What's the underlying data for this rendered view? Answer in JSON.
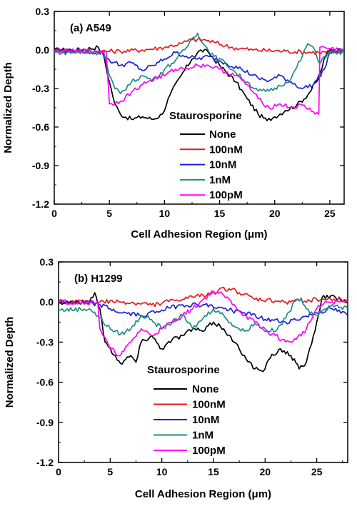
{
  "colors": {
    "None": "#000000",
    "100nM": "#e41a1c",
    "10nM": "#1f1fd6",
    "1nM": "#1e8c84",
    "100pM": "#ff00ff"
  },
  "chart_data": [
    {
      "type": "line",
      "panel_label": "(a) A549",
      "xlabel": "Cell Adhesion Region (μm)",
      "ylabel": "Normalized Depth",
      "xlim": [
        0,
        26.3
      ],
      "ylim": [
        -1.2,
        0.3
      ],
      "xticks": [
        "0",
        "5",
        "10",
        "15",
        "20",
        "25"
      ],
      "xtick_values": [
        0,
        5,
        10,
        15,
        20,
        25
      ],
      "yticks": [
        "0.3",
        "0.0",
        "-0.3",
        "-0.6",
        "-0.9",
        "-1.2"
      ],
      "ytick_values": [
        0.3,
        0.0,
        -0.3,
        -0.6,
        -0.9,
        -1.2
      ],
      "legend_title": "Staurosporine",
      "legend_position": "center",
      "series": [
        {
          "name": "None",
          "color_key": "None",
          "points": [
            [
              0,
              0.0
            ],
            [
              2.0,
              0.0
            ],
            [
              4.0,
              0.02
            ],
            [
              4.5,
              -0.05
            ],
            [
              5.0,
              -0.25
            ],
            [
              5.5,
              -0.42
            ],
            [
              6.0,
              -0.5
            ],
            [
              7.0,
              -0.54
            ],
            [
              8.0,
              -0.52
            ],
            [
              9.0,
              -0.54
            ],
            [
              9.8,
              -0.5
            ],
            [
              10.5,
              -0.35
            ],
            [
              11.5,
              -0.2
            ],
            [
              12.5,
              -0.07
            ],
            [
              13.3,
              0.0
            ],
            [
              14.0,
              -0.02
            ],
            [
              15.0,
              -0.12
            ],
            [
              16.5,
              -0.25
            ],
            [
              17.5,
              -0.38
            ],
            [
              18.5,
              -0.5
            ],
            [
              19.3,
              -0.55
            ],
            [
              20.0,
              -0.52
            ],
            [
              21.0,
              -0.47
            ],
            [
              22.0,
              -0.43
            ],
            [
              23.0,
              -0.35
            ],
            [
              24.0,
              -0.22
            ],
            [
              24.6,
              -0.05
            ],
            [
              25.0,
              0.0
            ],
            [
              26.3,
              0.0
            ]
          ]
        },
        {
          "name": "100nM",
          "color_key": "100nM",
          "points": [
            [
              0,
              0.0
            ],
            [
              4.0,
              -0.01
            ],
            [
              6.0,
              -0.01
            ],
            [
              8.0,
              0.0
            ],
            [
              10.0,
              0.02
            ],
            [
              11.5,
              0.05
            ],
            [
              12.5,
              0.08
            ],
            [
              13.5,
              0.08
            ],
            [
              14.5,
              0.06
            ],
            [
              16.0,
              0.02
            ],
            [
              18.0,
              0.0
            ],
            [
              21.0,
              -0.01
            ],
            [
              24.0,
              -0.02
            ],
            [
              26.3,
              -0.01
            ]
          ]
        },
        {
          "name": "10nM",
          "color_key": "10nM",
          "points": [
            [
              0,
              0.0
            ],
            [
              4.2,
              -0.02
            ],
            [
              5.0,
              -0.08
            ],
            [
              6.0,
              -0.12
            ],
            [
              7.0,
              -0.1
            ],
            [
              8.0,
              -0.16
            ],
            [
              9.0,
              -0.12
            ],
            [
              10.0,
              -0.07
            ],
            [
              11.0,
              -0.02
            ],
            [
              12.0,
              -0.05
            ],
            [
              13.0,
              -0.07
            ],
            [
              14.0,
              -0.05
            ],
            [
              15.5,
              -0.1
            ],
            [
              17.0,
              -0.15
            ],
            [
              18.5,
              -0.22
            ],
            [
              19.5,
              -0.24
            ],
            [
              20.5,
              -0.2
            ],
            [
              21.5,
              -0.25
            ],
            [
              22.5,
              -0.3
            ],
            [
              23.5,
              -0.27
            ],
            [
              24.5,
              -0.15
            ],
            [
              25.0,
              -0.02
            ],
            [
              26.3,
              0.0
            ]
          ]
        },
        {
          "name": "1nM",
          "color_key": "1nM",
          "points": [
            [
              0,
              -0.02
            ],
            [
              4.5,
              -0.02
            ],
            [
              5.0,
              -0.2
            ],
            [
              5.5,
              -0.3
            ],
            [
              6.0,
              -0.34
            ],
            [
              7.0,
              -0.25
            ],
            [
              8.0,
              -0.2
            ],
            [
              9.0,
              -0.24
            ],
            [
              10.0,
              -0.15
            ],
            [
              11.0,
              -0.08
            ],
            [
              12.0,
              0.02
            ],
            [
              12.5,
              0.09
            ],
            [
              13.0,
              0.13
            ],
            [
              13.5,
              0.05
            ],
            [
              14.5,
              -0.05
            ],
            [
              15.5,
              -0.1
            ],
            [
              16.5,
              -0.18
            ],
            [
              17.5,
              -0.25
            ],
            [
              18.5,
              -0.32
            ],
            [
              19.5,
              -0.32
            ],
            [
              20.5,
              -0.28
            ],
            [
              21.5,
              -0.22
            ],
            [
              22.5,
              -0.05
            ],
            [
              23.0,
              0.05
            ],
            [
              23.5,
              0.02
            ],
            [
              24.0,
              -0.1
            ],
            [
              24.5,
              -0.05
            ],
            [
              25.0,
              -0.02
            ],
            [
              26.3,
              -0.02
            ]
          ]
        },
        {
          "name": "100pM",
          "color_key": "100pM",
          "points": [
            [
              0,
              -0.01
            ],
            [
              4.7,
              -0.01
            ],
            [
              5.0,
              -0.42
            ],
            [
              6.0,
              -0.4
            ],
            [
              7.0,
              -0.33
            ],
            [
              8.0,
              -0.27
            ],
            [
              9.0,
              -0.22
            ],
            [
              10.0,
              -0.2
            ],
            [
              11.0,
              -0.15
            ],
            [
              12.0,
              -0.14
            ],
            [
              13.0,
              -0.12
            ],
            [
              14.0,
              -0.12
            ],
            [
              15.0,
              -0.15
            ],
            [
              16.5,
              -0.2
            ],
            [
              17.5,
              -0.27
            ],
            [
              18.5,
              -0.38
            ],
            [
              19.5,
              -0.45
            ],
            [
              20.5,
              -0.42
            ],
            [
              21.5,
              -0.45
            ],
            [
              22.5,
              -0.43
            ],
            [
              23.5,
              -0.48
            ],
            [
              24.0,
              -0.5
            ],
            [
              24.1,
              0.02
            ],
            [
              26.3,
              0.0
            ]
          ]
        }
      ]
    },
    {
      "type": "line",
      "panel_label": "(b) H1299",
      "xlabel": "Cell Adhesion Region (μm)",
      "ylabel": "Normalized Depth",
      "xlim": [
        0,
        28
      ],
      "ylim": [
        -1.2,
        0.3
      ],
      "xticks": [
        "0",
        "5",
        "10",
        "15",
        "20",
        "25"
      ],
      "xtick_values": [
        0,
        5,
        10,
        15,
        20,
        25
      ],
      "yticks": [
        "0.3",
        "0.0",
        "-0.3",
        "-0.6",
        "-0.9",
        "-1.2"
      ],
      "ytick_values": [
        0.3,
        0.0,
        -0.3,
        -0.6,
        -0.9,
        -1.2
      ],
      "legend_title": "Staurosporine",
      "legend_position": "center",
      "series": [
        {
          "name": "None",
          "color_key": "None",
          "points": [
            [
              0,
              0.0
            ],
            [
              3.0,
              0.0
            ],
            [
              3.5,
              0.07
            ],
            [
              4.0,
              -0.05
            ],
            [
              4.5,
              -0.3
            ],
            [
              5.5,
              -0.4
            ],
            [
              6.0,
              -0.46
            ],
            [
              7.0,
              -0.4
            ],
            [
              7.5,
              -0.45
            ],
            [
              8.0,
              -0.3
            ],
            [
              9.0,
              -0.25
            ],
            [
              10.0,
              -0.35
            ],
            [
              11.0,
              -0.28
            ],
            [
              12.0,
              -0.25
            ],
            [
              13.0,
              -0.2
            ],
            [
              14.0,
              -0.22
            ],
            [
              15.0,
              -0.15
            ],
            [
              16.0,
              -0.2
            ],
            [
              17.0,
              -0.3
            ],
            [
              18.0,
              -0.4
            ],
            [
              19.0,
              -0.5
            ],
            [
              19.8,
              -0.52
            ],
            [
              20.5,
              -0.42
            ],
            [
              21.5,
              -0.35
            ],
            [
              22.5,
              -0.4
            ],
            [
              23.3,
              -0.5
            ],
            [
              24.0,
              -0.45
            ],
            [
              25.0,
              -0.15
            ],
            [
              25.5,
              0.03
            ],
            [
              26.0,
              0.05
            ],
            [
              28,
              0.0
            ]
          ]
        },
        {
          "name": "100nM",
          "color_key": "100nM",
          "points": [
            [
              0,
              0.0
            ],
            [
              4.0,
              0.0
            ],
            [
              6.0,
              0.0
            ],
            [
              9.0,
              -0.02
            ],
            [
              12.0,
              0.02
            ],
            [
              14.0,
              0.05
            ],
            [
              15.5,
              0.09
            ],
            [
              16.5,
              0.1
            ],
            [
              17.5,
              0.07
            ],
            [
              19.0,
              0.02
            ],
            [
              22.0,
              0.0
            ],
            [
              25.0,
              0.02
            ],
            [
              28,
              0.02
            ]
          ]
        },
        {
          "name": "10nM",
          "color_key": "10nM",
          "points": [
            [
              0,
              0.0
            ],
            [
              4.0,
              -0.02
            ],
            [
              6.0,
              -0.08
            ],
            [
              8.0,
              -0.1
            ],
            [
              10.0,
              -0.06
            ],
            [
              12.0,
              -0.02
            ],
            [
              14.0,
              -0.02
            ],
            [
              16.0,
              -0.05
            ],
            [
              18.0,
              -0.08
            ],
            [
              20.0,
              -0.13
            ],
            [
              22.0,
              -0.15
            ],
            [
              23.5,
              -0.12
            ],
            [
              25.0,
              -0.08
            ],
            [
              26.5,
              -0.05
            ],
            [
              28,
              -0.1
            ]
          ]
        },
        {
          "name": "1nM",
          "color_key": "1nM",
          "points": [
            [
              0,
              -0.06
            ],
            [
              3.0,
              -0.05
            ],
            [
              4.0,
              -0.12
            ],
            [
              5.0,
              -0.2
            ],
            [
              6.0,
              -0.24
            ],
            [
              7.0,
              -0.2
            ],
            [
              8.0,
              -0.1
            ],
            [
              9.0,
              -0.13
            ],
            [
              10.0,
              -0.2
            ],
            [
              11.0,
              -0.15
            ],
            [
              12.0,
              -0.1
            ],
            [
              13.0,
              -0.2
            ],
            [
              14.0,
              -0.12
            ],
            [
              15.0,
              -0.05
            ],
            [
              16.0,
              -0.1
            ],
            [
              17.0,
              -0.18
            ],
            [
              18.0,
              -0.22
            ],
            [
              19.0,
              -0.16
            ],
            [
              20.0,
              -0.2
            ],
            [
              21.0,
              -0.22
            ],
            [
              22.0,
              -0.12
            ],
            [
              23.0,
              0.02
            ],
            [
              23.5,
              0.03
            ],
            [
              24.0,
              -0.05
            ],
            [
              25.0,
              -0.1
            ],
            [
              26.5,
              -0.02
            ],
            [
              28,
              -0.05
            ]
          ]
        },
        {
          "name": "100pM",
          "color_key": "100pM",
          "points": [
            [
              0,
              0.0
            ],
            [
              3.8,
              0.0
            ],
            [
              4.0,
              -0.2
            ],
            [
              5.0,
              -0.35
            ],
            [
              6.0,
              -0.4
            ],
            [
              7.0,
              -0.3
            ],
            [
              8.0,
              -0.2
            ],
            [
              9.0,
              -0.25
            ],
            [
              10.0,
              -0.2
            ],
            [
              11.0,
              -0.15
            ],
            [
              12.0,
              -0.1
            ],
            [
              13.0,
              -0.05
            ],
            [
              14.0,
              0.02
            ],
            [
              15.0,
              0.08
            ],
            [
              16.0,
              0.05
            ],
            [
              17.0,
              -0.02
            ],
            [
              18.0,
              -0.1
            ],
            [
              19.0,
              -0.15
            ],
            [
              20.0,
              -0.22
            ],
            [
              21.0,
              -0.25
            ],
            [
              22.0,
              -0.3
            ],
            [
              23.0,
              -0.28
            ],
            [
              24.0,
              -0.2
            ],
            [
              25.0,
              -0.05
            ],
            [
              26.0,
              0.0
            ],
            [
              28,
              0.0
            ]
          ]
        }
      ]
    }
  ]
}
